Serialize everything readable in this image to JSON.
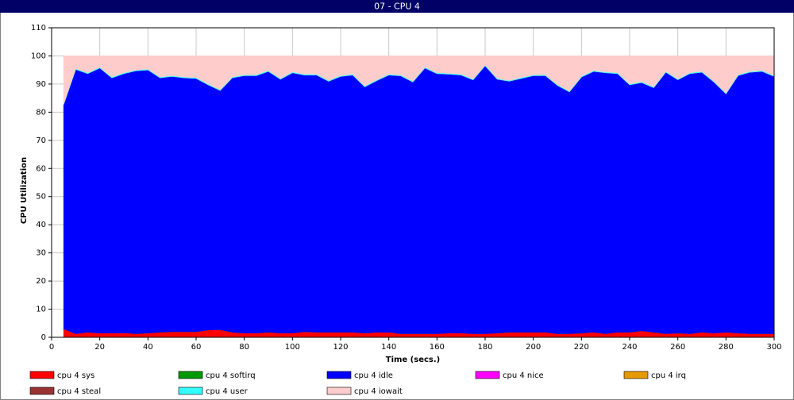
{
  "chart_data": {
    "type": "stacked_area",
    "title": "07 - CPU 4",
    "x_label": "Time (secs.)",
    "y_label": "CPU Utilization",
    "x": [
      5,
      10,
      15,
      20,
      25,
      30,
      35,
      40,
      45,
      50,
      55,
      60,
      65,
      70,
      75,
      80,
      85,
      90,
      95,
      100,
      105,
      110,
      115,
      120,
      125,
      130,
      135,
      140,
      145,
      150,
      155,
      160,
      165,
      170,
      175,
      180,
      185,
      190,
      195,
      200,
      205,
      210,
      215,
      220,
      225,
      230,
      235,
      240,
      245,
      250,
      255,
      260,
      265,
      270,
      275,
      280,
      285,
      290,
      295,
      300
    ],
    "xlim": [
      0,
      300
    ],
    "xticks": [
      0,
      20,
      40,
      60,
      80,
      100,
      120,
      140,
      160,
      180,
      200,
      220,
      240,
      260,
      280,
      300
    ],
    "ylim": [
      0,
      110
    ],
    "yticks": [
      0,
      10,
      20,
      30,
      40,
      50,
      60,
      70,
      80,
      90,
      100,
      110
    ],
    "grid": true,
    "series": [
      {
        "name": "cpu 4 sys",
        "color": "#ff0000",
        "values": [
          3,
          1.3,
          1.8,
          1.5,
          1.5,
          1.6,
          1.3,
          1.5,
          1.8,
          2,
          2,
          2,
          2.6,
          2.7,
          1.8,
          1.5,
          1.5,
          1.8,
          1.5,
          1.5,
          2,
          1.8,
          1.8,
          1.8,
          1.8,
          1.5,
          1.8,
          1.8,
          1.3,
          1.3,
          1.3,
          1.3,
          1.5,
          1.5,
          1.3,
          1.3,
          1.5,
          1.8,
          1.8,
          1.8,
          1.8,
          1.3,
          1.3,
          1.5,
          1.8,
          1.3,
          1.8,
          1.8,
          2.3,
          1.8,
          1.3,
          1.5,
          1.3,
          1.8,
          1.5,
          1.8,
          1.5,
          1.3,
          1.3,
          1.3
        ]
      },
      {
        "name": "cpu 4 softirq",
        "color": "#009900",
        "values": [
          0,
          0,
          0,
          0,
          0,
          0,
          0,
          0,
          0,
          0,
          0,
          0,
          0,
          0,
          0,
          0,
          0,
          0,
          0,
          0,
          0,
          0,
          0,
          0,
          0,
          0,
          0,
          0,
          0,
          0,
          0,
          0,
          0,
          0,
          0,
          0,
          0,
          0,
          0,
          0,
          0,
          0,
          0,
          0,
          0,
          0,
          0,
          0,
          0,
          0,
          0,
          0,
          0,
          0,
          0,
          0,
          0,
          0,
          0,
          0
        ]
      },
      {
        "name": "cpu 4 idle",
        "color": "#0000ff",
        "values": [
          79.7,
          93.9,
          91.9,
          94.2,
          90.7,
          92.1,
          93.4,
          93.5,
          90.4,
          90.7,
          90.2,
          90.0,
          87.1,
          85.0,
          90.4,
          91.5,
          91.5,
          92.7,
          90.2,
          92.5,
          91.2,
          91.4,
          89.2,
          90.9,
          91.4,
          87.5,
          89.4,
          91.4,
          91.6,
          89.4,
          94.4,
          92.4,
          92.0,
          91.7,
          90.2,
          95.2,
          90.2,
          89.2,
          90.2,
          91.2,
          91.2,
          88.2,
          85.9,
          91.0,
          92.7,
          92.7,
          91.9,
          87.9,
          88.2,
          86.9,
          92.9,
          90.0,
          92.4,
          92.4,
          89.2,
          84.7,
          91.5,
          92.9,
          93.2,
          91.4
        ]
      },
      {
        "name": "cpu 4 nice",
        "color": "#ff00ff",
        "values": [
          0,
          0,
          0,
          0,
          0,
          0,
          0,
          0,
          0,
          0,
          0,
          0,
          0,
          0,
          0,
          0,
          0,
          0,
          0,
          0,
          0,
          0,
          0,
          0,
          0,
          0,
          0,
          0,
          0,
          0,
          0,
          0,
          0,
          0,
          0,
          0,
          0,
          0,
          0,
          0,
          0,
          0,
          0,
          0,
          0,
          0,
          0,
          0,
          0,
          0,
          0,
          0,
          0,
          0,
          0,
          0,
          0,
          0,
          0,
          0
        ]
      },
      {
        "name": "cpu 4 irq",
        "color": "#e69900",
        "values": [
          0,
          0,
          0,
          0,
          0,
          0,
          0,
          0,
          0,
          0,
          0,
          0,
          0,
          0,
          0,
          0,
          0,
          0,
          0,
          0,
          0,
          0,
          0,
          0,
          0,
          0,
          0,
          0,
          0,
          0,
          0,
          0,
          0,
          0,
          0,
          0,
          0,
          0,
          0,
          0,
          0,
          0,
          0,
          0,
          0,
          0,
          0,
          0,
          0,
          0,
          0,
          0,
          0,
          0,
          0,
          0,
          0,
          0,
          0,
          0
        ]
      },
      {
        "name": "cpu 4 steal",
        "color": "#993333",
        "values": [
          0,
          0,
          0,
          0,
          0,
          0,
          0,
          0,
          0,
          0,
          0,
          0,
          0,
          0,
          0,
          0,
          0,
          0,
          0,
          0,
          0,
          0,
          0,
          0,
          0,
          0,
          0,
          0,
          0,
          0,
          0,
          0,
          0,
          0,
          0,
          0,
          0,
          0,
          0,
          0,
          0,
          0,
          0,
          0,
          0,
          0,
          0,
          0,
          0,
          0,
          0,
          0,
          0,
          0,
          0,
          0,
          0,
          0,
          0,
          0
        ]
      },
      {
        "name": "cpu 4 user",
        "color": "#33ffff",
        "values": [
          0.3,
          0.3,
          0.3,
          0.3,
          0.3,
          0.3,
          0.3,
          0.3,
          0.3,
          0.3,
          0.3,
          0.3,
          0.3,
          0.3,
          0.3,
          0.3,
          0.3,
          0.3,
          0.3,
          0.3,
          0.3,
          0.3,
          0.3,
          0.3,
          0.3,
          0.3,
          0.3,
          0.3,
          0.3,
          0.3,
          0.3,
          0.3,
          0.3,
          0.3,
          0.3,
          0.3,
          0.3,
          0.3,
          0.3,
          0.3,
          0.3,
          0.3,
          0.3,
          0.3,
          0.3,
          0.3,
          0.3,
          0.3,
          0.3,
          0.3,
          0.3,
          0.3,
          0.3,
          0.3,
          0.3,
          0.3,
          0.3,
          0.3,
          0.3,
          0.3
        ]
      },
      {
        "name": "cpu 4 iowait",
        "color": "#ffcccc",
        "values": [
          17,
          4.5,
          6,
          4,
          7.5,
          6,
          5,
          4.7,
          7.5,
          7,
          7.5,
          7.7,
          10,
          12,
          7.5,
          6.7,
          6.7,
          5.2,
          8,
          5.7,
          6.5,
          6.5,
          8.7,
          7,
          6.5,
          10.7,
          8.5,
          6.5,
          6.8,
          9,
          4,
          6,
          6.2,
          6.5,
          8.2,
          3.2,
          8,
          8.7,
          7.7,
          6.7,
          6.7,
          10.2,
          12.5,
          7.2,
          5.2,
          5.7,
          6,
          10,
          9.2,
          11,
          5.5,
          8.2,
          6,
          5.5,
          9,
          13.2,
          6.7,
          5.5,
          5.2,
          7
        ]
      }
    ]
  }
}
